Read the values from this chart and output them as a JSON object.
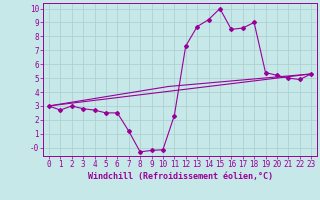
{
  "xlabel": "Windchill (Refroidissement éolien,°C)",
  "background_color": "#c6e8e8",
  "grid_color": "#aacccc",
  "line_color": "#990099",
  "xlim": [
    -0.5,
    23.5
  ],
  "ylim": [
    -0.6,
    10.4
  ],
  "xticks": [
    0,
    1,
    2,
    3,
    4,
    5,
    6,
    7,
    8,
    9,
    10,
    11,
    12,
    13,
    14,
    15,
    16,
    17,
    18,
    19,
    20,
    21,
    22,
    23
  ],
  "yticks": [
    0,
    1,
    2,
    3,
    4,
    5,
    6,
    7,
    8,
    9,
    10
  ],
  "ytick_labels": [
    "-0",
    "1",
    "2",
    "3",
    "4",
    "5",
    "6",
    "7",
    "8",
    "9",
    "10"
  ],
  "curve1_x": [
    0,
    1,
    2,
    3,
    4,
    5,
    6,
    7,
    8,
    9,
    10,
    11,
    12,
    13,
    14,
    15,
    16,
    17,
    18,
    19,
    20,
    21,
    22,
    23
  ],
  "curve1_y": [
    3.0,
    2.7,
    3.0,
    2.8,
    2.7,
    2.5,
    2.5,
    1.2,
    -0.3,
    -0.2,
    -0.15,
    2.3,
    7.3,
    8.7,
    9.2,
    10.0,
    8.5,
    8.6,
    9.0,
    5.4,
    5.2,
    5.0,
    4.9,
    5.3
  ],
  "curve2_x": [
    0,
    23
  ],
  "curve2_y": [
    3.0,
    5.3
  ],
  "curve3_x": [
    0,
    10.5,
    23
  ],
  "curve3_y": [
    3.0,
    4.4,
    5.3
  ],
  "marker_size": 2.0,
  "line_width": 0.8,
  "tick_fontsize": 5.5,
  "xlabel_fontsize": 6.0
}
